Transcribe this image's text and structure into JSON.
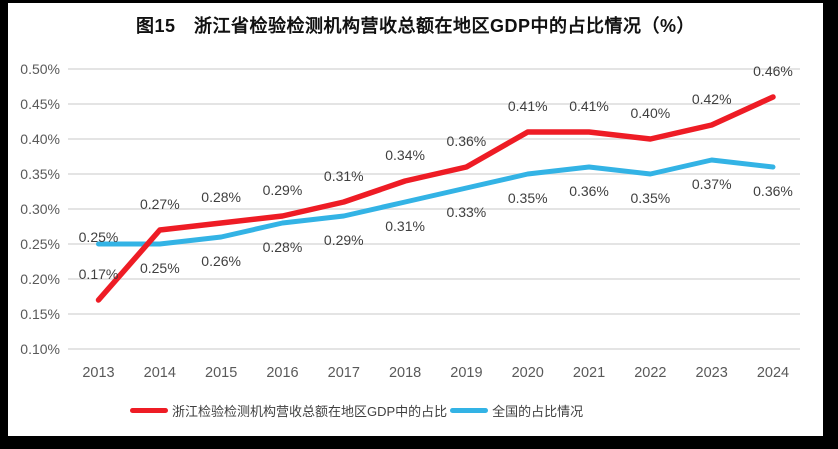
{
  "chart_data": {
    "type": "line",
    "title": "图15　浙江省检验检测机构营收总额在地区GDP中的占比情况（%）",
    "categories": [
      "2013",
      "2014",
      "2015",
      "2016",
      "2017",
      "2018",
      "2019",
      "2020",
      "2021",
      "2022",
      "2023",
      "2024"
    ],
    "series": [
      {
        "id": "zhejiang",
        "name": "浙江检验检测机构营收总额在地区GDP中的占比",
        "color": "#ee1c25",
        "values": [
          0.17,
          0.27,
          0.28,
          0.29,
          0.31,
          0.34,
          0.36,
          0.41,
          0.41,
          0.4,
          0.42,
          0.46
        ],
        "label_position": "above"
      },
      {
        "id": "national",
        "name": "全国的占比情况",
        "color": "#33b3e5",
        "values": [
          0.25,
          0.25,
          0.26,
          0.28,
          0.29,
          0.31,
          0.33,
          0.35,
          0.36,
          0.35,
          0.37,
          0.36
        ],
        "label_position": "below",
        "label_position_overrides": {
          "0": "above-close"
        }
      }
    ],
    "xlabel": "",
    "ylabel": "",
    "ylim": [
      0.1,
      0.5
    ],
    "ytick_step": 0.05,
    "ytick_labels": [
      "0.50%",
      "0.45%",
      "0.40%",
      "0.35%",
      "0.30%",
      "0.25%",
      "0.20%",
      "0.15%",
      "0.10%"
    ],
    "value_suffix": "%",
    "grid": true,
    "legend_position": "bottom",
    "colors": {
      "gridline": "#dcdcdc",
      "axis_text": "#595959",
      "data_label_text": "#3f3f3f",
      "title_text": "#111111",
      "background": "#ffffff",
      "frame": "#000000"
    }
  }
}
